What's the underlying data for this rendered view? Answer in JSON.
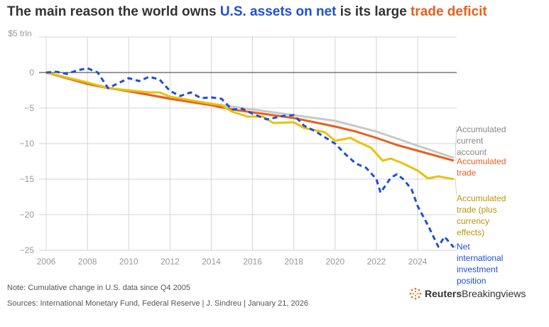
{
  "title": {
    "part1": "The main reason the world owns ",
    "part2": "U.S. assets on net",
    "part3": " is its large ",
    "part4": "trade deficit"
  },
  "footer": {
    "note": "Note: Cumulative change in U.S. data since Q4 2005",
    "sources": "Sources: International Monetary Fund, Federal Reserve | J. Sindreu | January 21, 2026",
    "brand_bold": "Reuters",
    "brand_rest": "Breakingviews"
  },
  "chart_data": {
    "type": "line",
    "title": "The main reason the world owns U.S. assets on net is its large trade deficit",
    "ylabel": "$ trillion",
    "ylim": [
      -25,
      5
    ],
    "xlim": [
      2006,
      2025.75
    ],
    "yticks": [
      {
        "v": 5,
        "label": "$5 trln"
      },
      {
        "v": 0,
        "label": "0"
      },
      {
        "v": -5,
        "label": "−5"
      },
      {
        "v": -10,
        "label": "−10"
      },
      {
        "v": -15,
        "label": "−15"
      },
      {
        "v": -20,
        "label": "−20"
      },
      {
        "v": -25,
        "label": "−25"
      }
    ],
    "xticks": [
      {
        "v": 2006,
        "label": "2006"
      },
      {
        "v": 2008,
        "label": "2008"
      },
      {
        "v": 2010,
        "label": "2010"
      },
      {
        "v": 2012,
        "label": "2012"
      },
      {
        "v": 2014,
        "label": "2014"
      },
      {
        "v": 2016,
        "label": "2016"
      },
      {
        "v": 2018,
        "label": "2018"
      },
      {
        "v": 2020,
        "label": "2020"
      },
      {
        "v": 2022,
        "label": "2022"
      },
      {
        "v": 2024,
        "label": "2024"
      }
    ],
    "series": [
      {
        "name": "Accumulated current account",
        "label": [
          "Accumulated",
          "current",
          "account"
        ],
        "color": "#c8c8c8",
        "dashed": false,
        "x": [
          2006,
          2008,
          2010,
          2012,
          2014,
          2016,
          2018,
          2020,
          2022,
          2024,
          2025.75
        ],
        "y": [
          0,
          -1.5,
          -2.7,
          -3.6,
          -4.4,
          -5.2,
          -6.0,
          -6.8,
          -8.3,
          -10.3,
          -12.0
        ]
      },
      {
        "name": "Accumulated trade",
        "label": [
          "Accumulated",
          "trade"
        ],
        "color": "#e8601c",
        "dashed": false,
        "x": [
          2006,
          2008,
          2009,
          2010,
          2012,
          2014,
          2015,
          2016,
          2018,
          2020,
          2021,
          2022,
          2023,
          2024,
          2025,
          2025.75
        ],
        "y": [
          0,
          -1.6,
          -2.2,
          -2.6,
          -3.7,
          -4.6,
          -5.2,
          -5.6,
          -6.4,
          -7.6,
          -8.3,
          -9.2,
          -10.2,
          -11.0,
          -11.8,
          -12.4
        ]
      },
      {
        "name": "Accumulated trade (plus currency effects)",
        "label": [
          "Accumulated",
          "trade (plus",
          "currency",
          "effects)"
        ],
        "color": "#e8c20c",
        "dashed": false,
        "x": [
          2006,
          2008,
          2009,
          2010,
          2011,
          2011.5,
          2012,
          2014,
          2014.5,
          2015,
          2015.75,
          2016.5,
          2017,
          2018,
          2018.5,
          2019.5,
          2020,
          2020.75,
          2021,
          2021.75,
          2022.3,
          2022.7,
          2023.3,
          2024,
          2024.5,
          2025,
          2025.75
        ],
        "y": [
          0,
          -1.4,
          -2.2,
          -2.5,
          -2.8,
          -2.8,
          -3.4,
          -4.4,
          -4.6,
          -5.5,
          -6.2,
          -6.2,
          -7.1,
          -7.0,
          -7.8,
          -8.4,
          -9.6,
          -9.2,
          -9.6,
          -10.6,
          -12.4,
          -12.1,
          -12.8,
          -13.8,
          -14.9,
          -14.6,
          -15.0
        ]
      },
      {
        "name": "Net international investment position",
        "label": [
          "Net",
          "international",
          "investment",
          "position"
        ],
        "color": "#1f4fd6",
        "dashed": true,
        "x": [
          2006,
          2006.5,
          2007,
          2007.5,
          2008,
          2008.5,
          2009,
          2009.5,
          2010,
          2010.5,
          2011,
          2011.5,
          2012,
          2012.5,
          2013,
          2013.5,
          2014,
          2014.5,
          2015,
          2015.5,
          2016,
          2016.7,
          2017.5,
          2018,
          2018.5,
          2019,
          2019.5,
          2020,
          2020.5,
          2021,
          2021.5,
          2022,
          2022.2,
          2022.7,
          2023,
          2023.3,
          2023.7,
          2024,
          2024.5,
          2025,
          2025.3,
          2025.75
        ],
        "y": [
          0,
          0.1,
          -0.2,
          0.3,
          0.6,
          0,
          -2.2,
          -1.5,
          -0.8,
          -1.2,
          -0.6,
          -1.0,
          -2.6,
          -3.3,
          -2.8,
          -3.6,
          -3.5,
          -3.7,
          -5.2,
          -5.1,
          -5.8,
          -6.6,
          -6.1,
          -6.0,
          -7.5,
          -8.2,
          -9.1,
          -10.0,
          -11.5,
          -12.8,
          -13.4,
          -15.0,
          -16.9,
          -14.8,
          -14.3,
          -15.0,
          -16.4,
          -18.8,
          -21.5,
          -24.5,
          -23.1,
          -24.6
        ]
      }
    ]
  }
}
